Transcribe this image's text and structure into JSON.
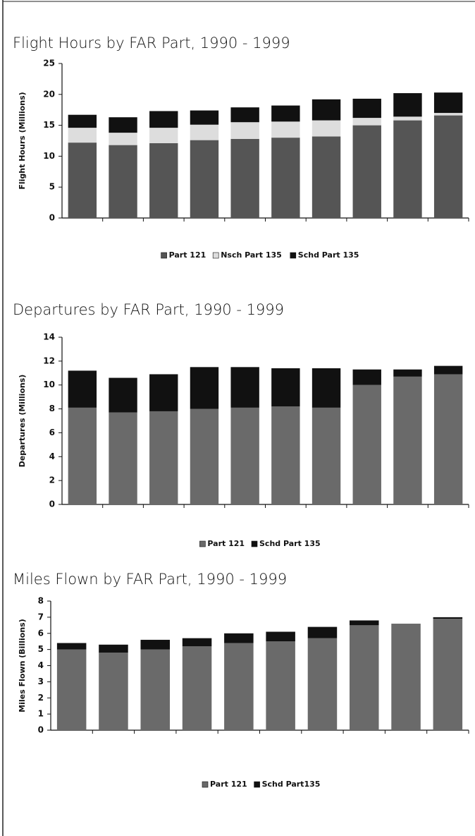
{
  "chart_data": [
    {
      "type": "bar",
      "stacked": true,
      "title": "Flight Hours by FAR Part, 1990 - 1999",
      "y_label": "Flight Hours (Millions)",
      "categories": [
        null,
        null,
        null,
        null,
        null,
        null,
        null,
        null,
        null,
        null
      ],
      "series": [
        {
          "name": "Part 121",
          "color": "#555555",
          "values": [
            12.2,
            11.8,
            12.1,
            12.6,
            12.8,
            13.0,
            13.2,
            15.0,
            15.8,
            16.6
          ]
        },
        {
          "name": "Nsch Part 135",
          "color": "#dddddd",
          "values": [
            2.4,
            2.0,
            2.5,
            2.5,
            2.7,
            2.6,
            2.6,
            1.2,
            0.6,
            0.4
          ]
        },
        {
          "name": "Schd Part 135",
          "color": "#111111",
          "values": [
            2.1,
            2.5,
            2.7,
            2.3,
            2.4,
            2.6,
            3.4,
            3.1,
            3.8,
            3.3
          ]
        }
      ],
      "ylim": [
        0,
        25
      ],
      "yticks": [
        0,
        5,
        10,
        15,
        20,
        25
      ]
    },
    {
      "type": "bar",
      "stacked": true,
      "title": "Departures by FAR Part, 1990 - 1999",
      "y_label": "Departures (Millions)",
      "categories": [
        null,
        null,
        null,
        null,
        null,
        null,
        null,
        null,
        null,
        null
      ],
      "series": [
        {
          "name": "Part 121",
          "color": "#6a6a6a",
          "values": [
            8.1,
            7.7,
            7.8,
            8.0,
            8.1,
            8.2,
            8.1,
            10.0,
            10.7,
            10.9
          ]
        },
        {
          "name": "Schd Part 135",
          "color": "#111111",
          "values": [
            3.1,
            2.9,
            3.1,
            3.5,
            3.4,
            3.2,
            3.3,
            1.3,
            0.6,
            0.7
          ]
        }
      ],
      "ylim": [
        0,
        14
      ],
      "yticks": [
        0,
        2,
        4,
        6,
        8,
        10,
        12,
        14
      ]
    },
    {
      "type": "bar",
      "stacked": true,
      "title": "Miles Flown by FAR Part, 1990 - 1999",
      "y_label": "Miles Flown (Billions)",
      "categories": [
        null,
        null,
        null,
        null,
        null,
        null,
        null,
        null,
        null,
        null
      ],
      "series": [
        {
          "name": "Part 121",
          "color": "#6a6a6a",
          "values": [
            5.0,
            4.8,
            5.0,
            5.2,
            5.4,
            5.5,
            5.7,
            6.5,
            6.6,
            6.9
          ]
        },
        {
          "name": "Schd Part135",
          "color": "#111111",
          "values": [
            0.4,
            0.5,
            0.6,
            0.5,
            0.6,
            0.6,
            0.7,
            0.3,
            0.0,
            0.1
          ]
        }
      ],
      "ylim": [
        0,
        8
      ],
      "yticks": [
        0,
        1,
        2,
        3,
        4,
        5,
        6,
        7,
        8
      ]
    }
  ]
}
